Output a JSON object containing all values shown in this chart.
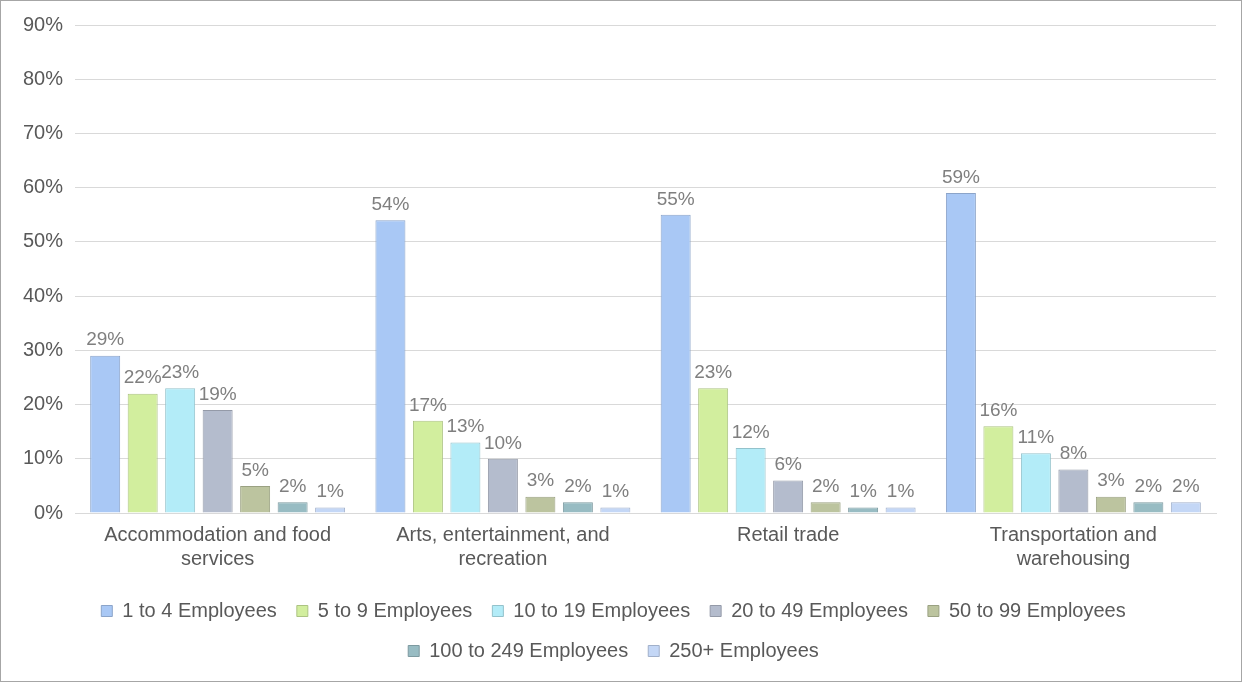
{
  "chart_data": {
    "type": "bar",
    "categories": [
      "Accommodation and food services",
      "Arts, entertainment, and recreation",
      "Retail trade",
      "Transportation and warehousing"
    ],
    "series": [
      {
        "name": "1 to 4 Employees",
        "color": "#a9c8f5",
        "values": [
          29,
          54,
          55,
          59
        ],
        "value_labels": [
          "29%",
          "54%",
          "55%",
          "59%"
        ]
      },
      {
        "name": "5 to 9 Employees",
        "color": "#d2ee9e",
        "values": [
          22,
          17,
          23,
          16
        ],
        "value_labels": [
          "22%",
          "17%",
          "23%",
          "16%"
        ]
      },
      {
        "name": "10 to 19 Employees",
        "color": "#b3ecf8",
        "values": [
          23,
          13,
          12,
          11
        ],
        "value_labels": [
          "23%",
          "13%",
          "12%",
          "11%"
        ]
      },
      {
        "name": "20 to 49 Employees",
        "color": "#b4bccd",
        "values": [
          19,
          10,
          6,
          8
        ],
        "value_labels": [
          "19%",
          "10%",
          "6%",
          "8%"
        ]
      },
      {
        "name": "50 to 99 Employees",
        "color": "#bcc49f",
        "values": [
          5,
          3,
          2,
          3
        ],
        "value_labels": [
          "5%",
          "3%",
          "2%",
          "3%"
        ]
      },
      {
        "name": "100 to 249 Employees",
        "color": "#98bcc3",
        "values": [
          2,
          2,
          1,
          2
        ],
        "value_labels": [
          "2%",
          "2%",
          "1%",
          "2%"
        ]
      },
      {
        "name": "250+ Employees",
        "color": "#c4d7f6",
        "values": [
          1,
          1,
          1,
          2
        ],
        "value_labels": [
          "1%",
          "1%",
          "1%",
          "2%"
        ]
      }
    ],
    "ylim": [
      0,
      90
    ],
    "yticks": [
      {
        "value": 0,
        "label": "0%"
      },
      {
        "value": 10,
        "label": "10%"
      },
      {
        "value": 20,
        "label": "20%"
      },
      {
        "value": 30,
        "label": "30%"
      },
      {
        "value": 40,
        "label": "40%"
      },
      {
        "value": 50,
        "label": "50%"
      },
      {
        "value": 60,
        "label": "60%"
      },
      {
        "value": 70,
        "label": "70%"
      },
      {
        "value": 80,
        "label": "80%"
      },
      {
        "value": 90,
        "label": "90%"
      }
    ],
    "grid": "y",
    "legend": "bottom"
  }
}
